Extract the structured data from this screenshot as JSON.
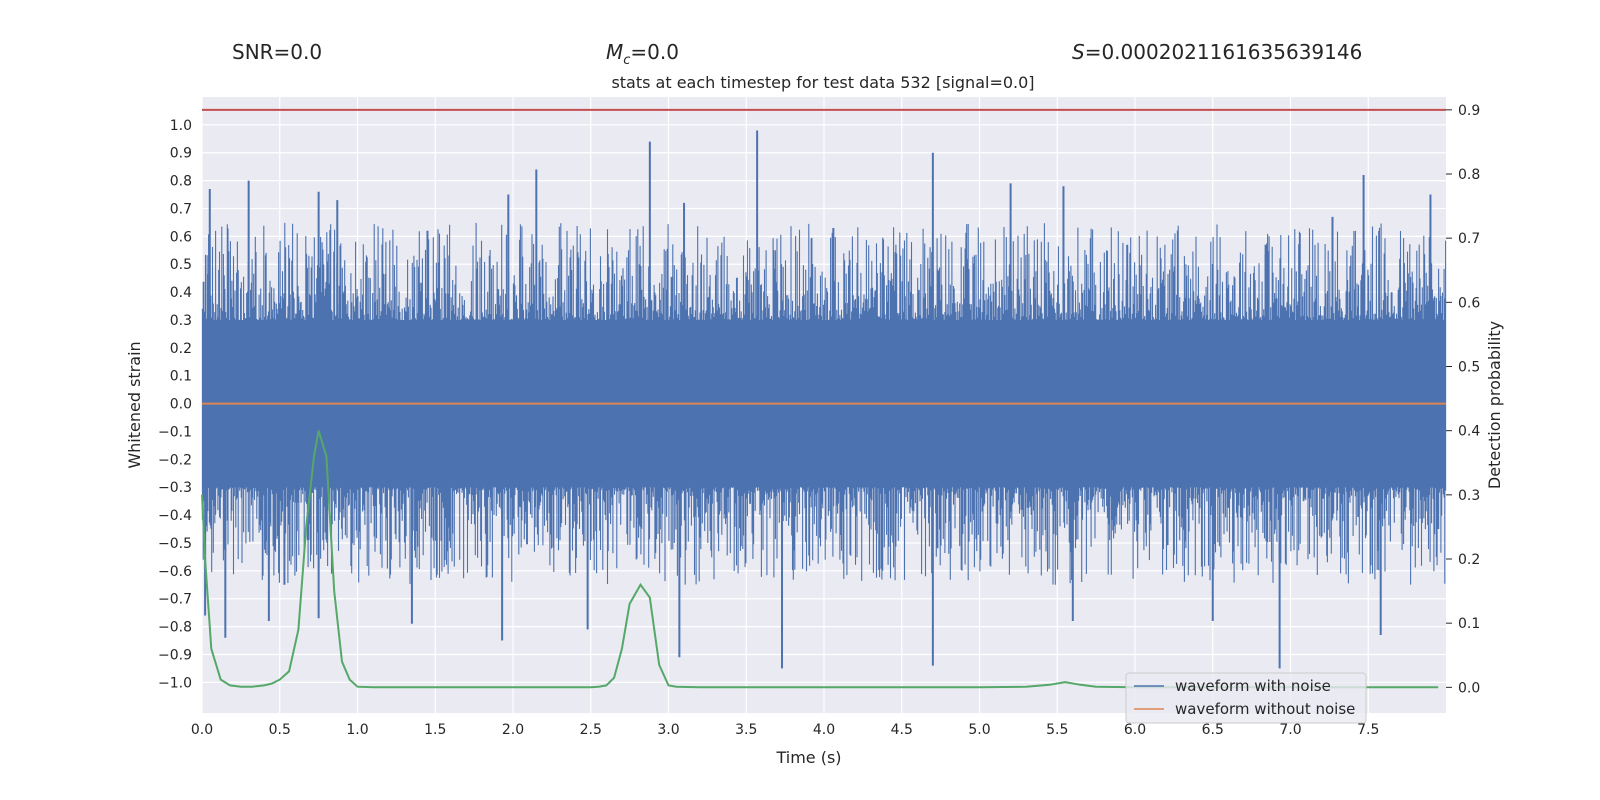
{
  "header": {
    "snr": "SNR=0.0",
    "mc_value": "=0.0",
    "s_value": "=0.00020211616356391 46"
  },
  "chart_data": {
    "type": "line",
    "title": "stats at each timestep for test data 532 [signal=0.0]",
    "xlabel": "Time (s)",
    "ylabel": "Whitened strain",
    "y2label": "Detection probability",
    "xlim": [
      0,
      8.0
    ],
    "ylim": [
      -1.11,
      1.1
    ],
    "y2lim": [
      -0.04,
      0.92
    ],
    "x_ticks": [
      "0.0",
      "0.5",
      "1.0",
      "1.5",
      "2.0",
      "2.5",
      "3.0",
      "3.5",
      "4.0",
      "4.5",
      "5.0",
      "5.5",
      "6.0",
      "6.5",
      "7.0",
      "7.5"
    ],
    "y_ticks": [
      "1.0",
      "0.9",
      "0.8",
      "0.7",
      "0.6",
      "0.5",
      "0.4",
      "0.3",
      "0.2",
      "0.1",
      "0.0",
      "−0.1",
      "−0.2",
      "−0.3",
      "−0.4",
      "−0.5",
      "−0.6",
      "−0.7",
      "−0.8",
      "−0.9",
      "−1.0"
    ],
    "y2_ticks": [
      "0.9",
      "0.8",
      "0.7",
      "0.6",
      "0.5",
      "0.4",
      "0.3",
      "0.2",
      "0.1",
      "0.0"
    ],
    "threshold": 0.9,
    "series": [
      {
        "name": "waveform with noise",
        "color": "#4c72b0",
        "description": "dense whitened noise, envelope approx ±0.4 with spikes; peaks near t=0.05,0.3,0.75,1.97,2.88,3.57,4.7,6.84,7.47; troughs near t=0.02,0.15,0.43,0.75,1.93,3.73,4.7,6.93,7.58",
        "peaks": [
          [
            0.05,
            0.77
          ],
          [
            0.3,
            0.8
          ],
          [
            0.75,
            0.76
          ],
          [
            0.87,
            0.73
          ],
          [
            1.45,
            0.62
          ],
          [
            1.97,
            0.75
          ],
          [
            2.15,
            0.84
          ],
          [
            2.88,
            0.94
          ],
          [
            3.1,
            0.72
          ],
          [
            3.57,
            0.98
          ],
          [
            4.06,
            0.63
          ],
          [
            4.7,
            0.9
          ],
          [
            5.2,
            0.79
          ],
          [
            5.54,
            0.78
          ],
          [
            5.95,
            0.57
          ],
          [
            6.84,
            0.57
          ],
          [
            7.27,
            0.67
          ],
          [
            7.47,
            0.82
          ],
          [
            7.9,
            0.75
          ]
        ],
        "troughs": [
          [
            0.02,
            -0.76
          ],
          [
            0.15,
            -0.84
          ],
          [
            0.43,
            -0.78
          ],
          [
            0.53,
            -0.65
          ],
          [
            0.75,
            -0.77
          ],
          [
            1.35,
            -0.79
          ],
          [
            1.93,
            -0.85
          ],
          [
            2.48,
            -0.81
          ],
          [
            3.07,
            -0.91
          ],
          [
            3.73,
            -0.95
          ],
          [
            4.7,
            -0.94
          ],
          [
            5.6,
            -0.78
          ],
          [
            6.5,
            -0.78
          ],
          [
            6.93,
            -0.95
          ],
          [
            7.58,
            -0.83
          ],
          [
            7.95,
            -0.45
          ]
        ]
      },
      {
        "name": "waveform without noise",
        "color": "#dd8452",
        "constant": 0.0
      },
      {
        "name": "detection probability",
        "color": "#55a868",
        "axis": "y2",
        "x": [
          0.0,
          0.02,
          0.06,
          0.12,
          0.18,
          0.25,
          0.32,
          0.4,
          0.45,
          0.5,
          0.56,
          0.62,
          0.67,
          0.72,
          0.75,
          0.8,
          0.85,
          0.9,
          0.95,
          1.0,
          1.1,
          1.5,
          2.0,
          2.5,
          2.55,
          2.6,
          2.65,
          2.7,
          2.75,
          2.82,
          2.88,
          2.94,
          3.0,
          3.05,
          3.2,
          4.0,
          5.0,
          5.3,
          5.45,
          5.55,
          5.65,
          5.75,
          6.0,
          6.5,
          7.0,
          7.5,
          7.95
        ],
        "values": [
          0.3,
          0.2,
          0.06,
          0.012,
          0.003,
          0.001,
          0.001,
          0.003,
          0.006,
          0.012,
          0.025,
          0.09,
          0.25,
          0.36,
          0.4,
          0.36,
          0.15,
          0.04,
          0.012,
          0.001,
          0.0,
          0.0,
          0.0,
          0.0,
          0.001,
          0.003,
          0.015,
          0.06,
          0.13,
          0.16,
          0.14,
          0.035,
          0.003,
          0.001,
          0.0,
          0.0,
          0.0,
          0.001,
          0.004,
          0.008,
          0.004,
          0.001,
          0.0,
          0.0,
          0.0,
          0.0,
          0.0
        ]
      }
    ],
    "legend": [
      "waveform with noise",
      "waveform without noise"
    ],
    "legend_position": "bottom-right"
  }
}
